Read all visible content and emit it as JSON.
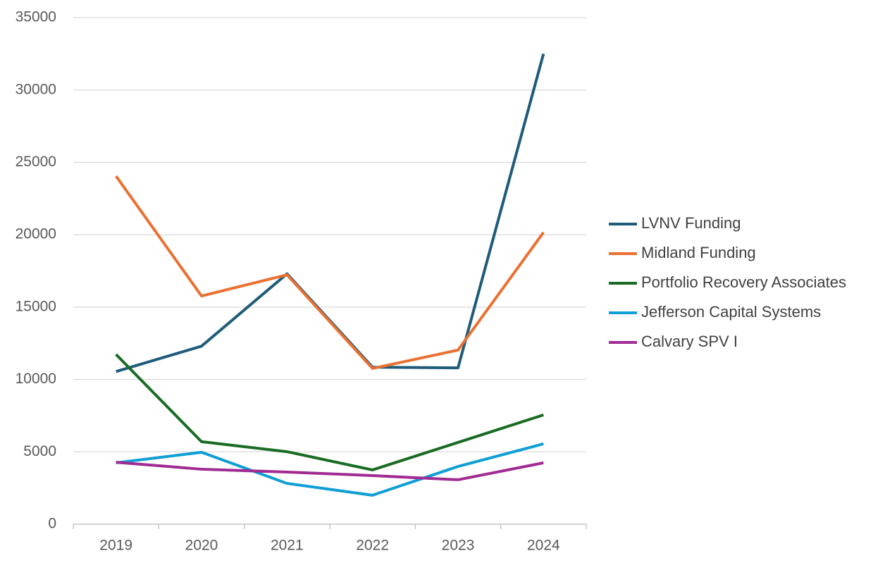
{
  "chart_data": {
    "type": "line",
    "categories": [
      "2019",
      "2020",
      "2021",
      "2022",
      "2023",
      "2024"
    ],
    "series": [
      {
        "name": "LVNV Funding",
        "color": "#1f5c7a",
        "values": [
          10550,
          12300,
          17300,
          10850,
          10800,
          32500
        ]
      },
      {
        "name": "Midland Funding",
        "color": "#e97132",
        "values": [
          24050,
          15770,
          17230,
          10760,
          12030,
          20160
        ]
      },
      {
        "name": "Portfolio Recovery Associates",
        "color": "#196b24",
        "values": [
          11730,
          5700,
          5010,
          3750,
          5650,
          7550
        ]
      },
      {
        "name": "Jefferson Capital Systems",
        "color": "#0f9ed5",
        "values": [
          4240,
          4970,
          2820,
          2000,
          3990,
          5550
        ]
      },
      {
        "name": "Calvary SPV I",
        "color": "#a02b93",
        "values": [
          4280,
          3800,
          3600,
          3360,
          3070,
          4240
        ]
      }
    ],
    "ylim": [
      0,
      35000
    ],
    "yticks": [
      0,
      5000,
      10000,
      15000,
      20000,
      25000,
      30000,
      35000
    ],
    "grid": true,
    "legend": "right"
  }
}
